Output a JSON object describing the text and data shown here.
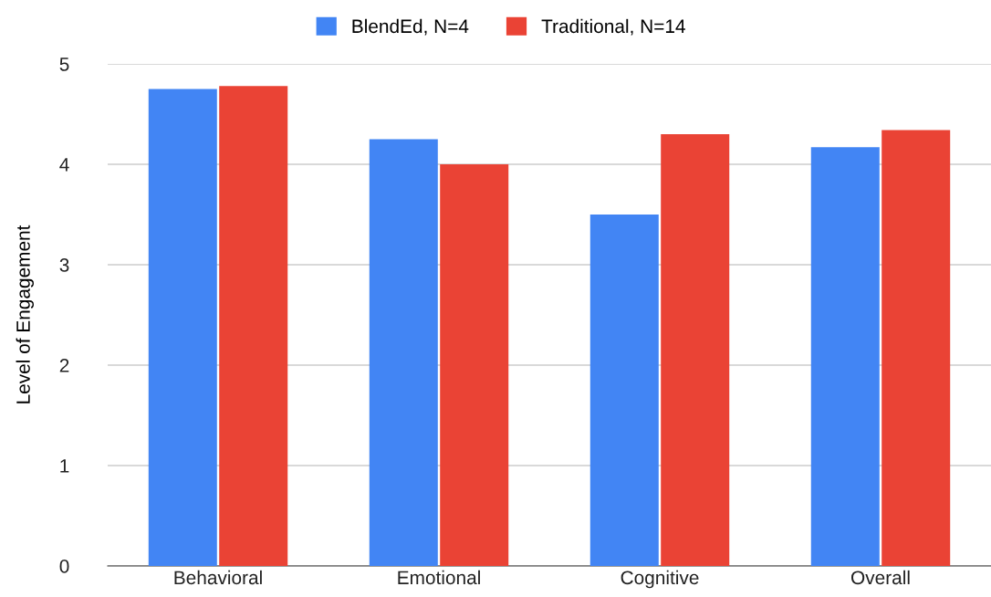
{
  "chart_data": {
    "type": "bar",
    "ylabel": "Level of Engagement",
    "categories": [
      "Behavioral",
      "Emotional",
      "Cognitive",
      "Overall"
    ],
    "series": [
      {
        "name": "BlendEd, N=4",
        "color": "#4285f4",
        "values": [
          4.75,
          4.25,
          3.5,
          4.17
        ]
      },
      {
        "name": "Traditional, N=14",
        "color": "#ea4335",
        "values": [
          4.78,
          4.0,
          4.3,
          4.34
        ]
      }
    ],
    "ylim": [
      0,
      5
    ],
    "yticks": [
      0,
      1,
      2,
      3,
      4,
      5
    ],
    "grid": "y",
    "legend": "top"
  }
}
